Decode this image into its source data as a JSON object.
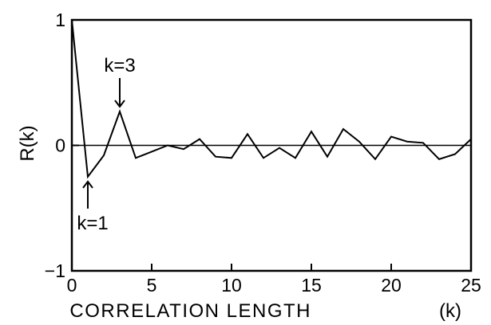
{
  "chart_data": {
    "type": "line",
    "xlabel": "CORRELATION LENGTH",
    "xlabel_unit": "(k)",
    "ylabel": "R(k)",
    "xlim": [
      0,
      25
    ],
    "ylim": [
      -1,
      1
    ],
    "x_ticks": [
      0,
      5,
      10,
      15,
      20,
      25
    ],
    "x_tick_labels": [
      "0",
      "5",
      "10",
      "15",
      "20",
      "25"
    ],
    "y_ticks": [
      -1,
      0,
      1
    ],
    "y_tick_labels": [
      "-1",
      "0",
      "1"
    ],
    "zero_line": true,
    "grid": false,
    "x": [
      0,
      1,
      2,
      3,
      4,
      5,
      6,
      7,
      8,
      9,
      10,
      11,
      12,
      13,
      14,
      15,
      16,
      17,
      18,
      19,
      20,
      21,
      22,
      23,
      24,
      25
    ],
    "values": [
      1.0,
      -0.25,
      -0.08,
      0.27,
      -0.1,
      -0.05,
      0.0,
      -0.03,
      0.05,
      -0.09,
      -0.1,
      0.09,
      -0.1,
      -0.02,
      -0.1,
      0.11,
      -0.09,
      0.13,
      0.03,
      -0.11,
      0.07,
      0.03,
      0.02,
      -0.11,
      -0.07,
      0.05
    ],
    "annotations": [
      {
        "text": "k=3",
        "x": 3,
        "y": 0.27,
        "arrow": "down"
      },
      {
        "text": "k=1",
        "x": 1,
        "y": -0.25,
        "arrow": "up"
      }
    ]
  }
}
